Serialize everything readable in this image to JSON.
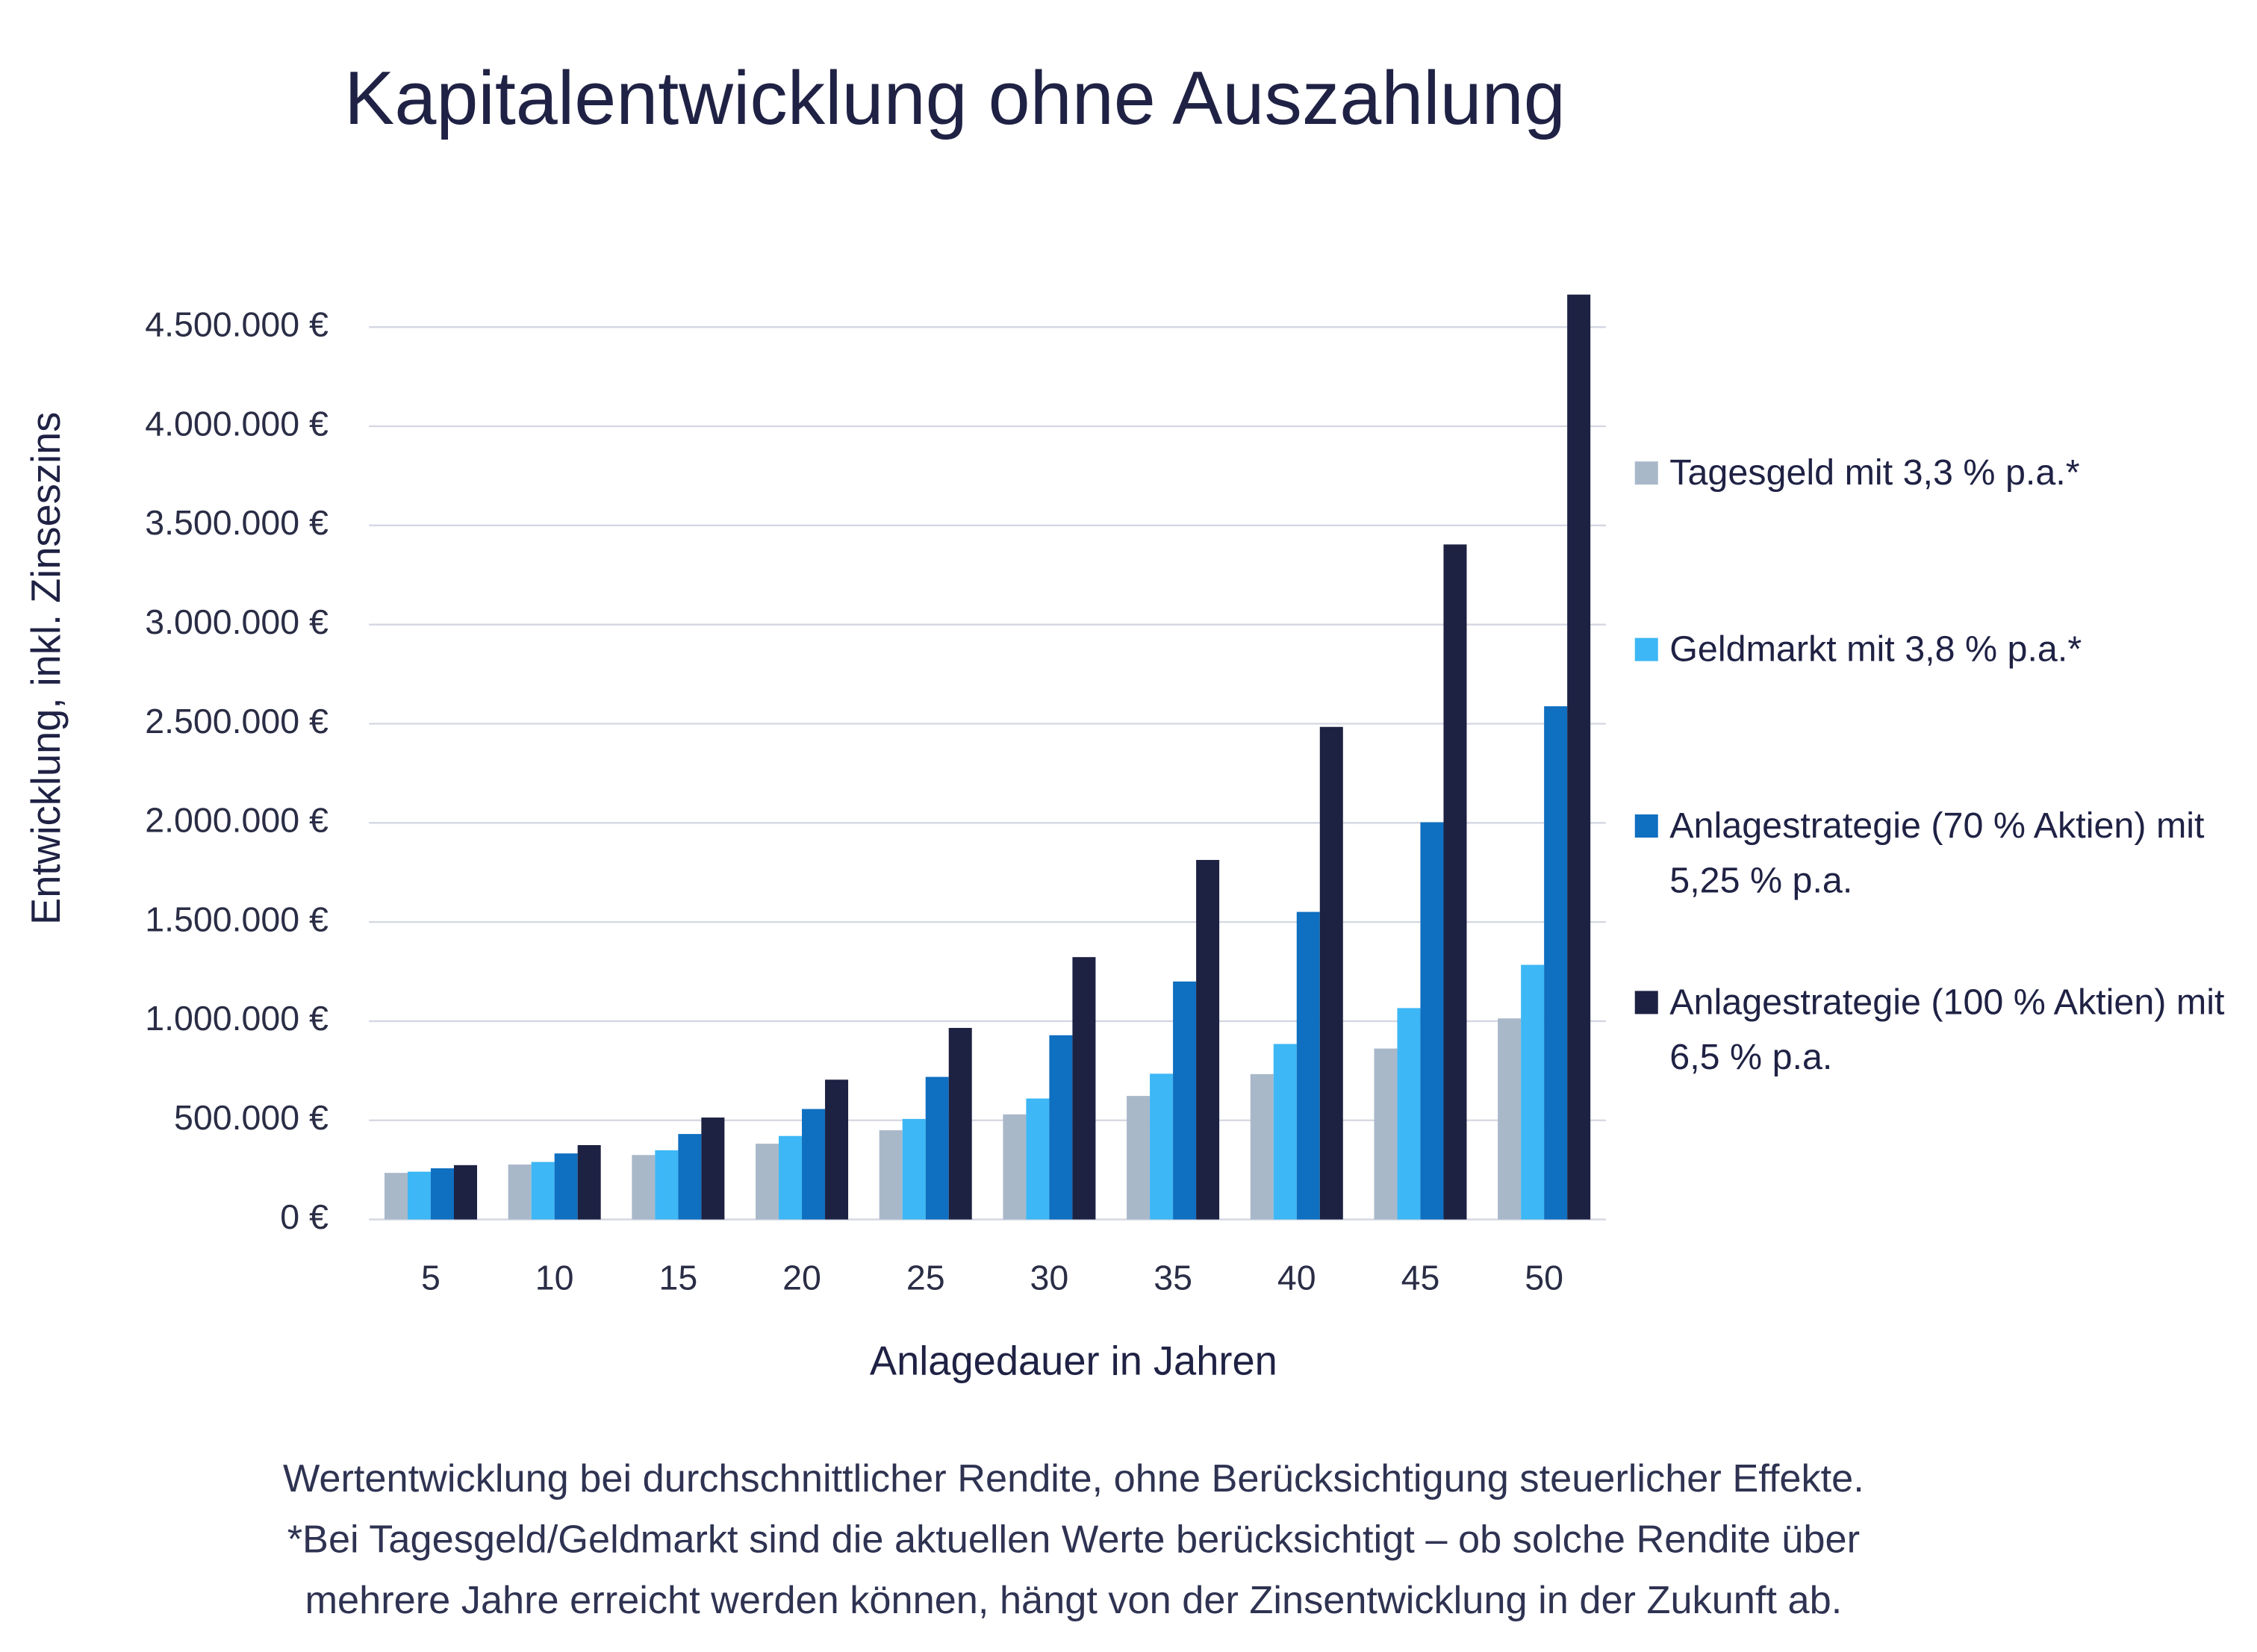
{
  "chart_data": {
    "type": "bar",
    "title": "Kapitalentwicklung ohne Auszahlung",
    "x_label": "Anlagedauer in Jahren",
    "y_label": "Entwicklung, inkl. Zinseszins",
    "categories": [
      "5",
      "10",
      "15",
      "20",
      "25",
      "30",
      "35",
      "40",
      "45",
      "50"
    ],
    "series": [
      {
        "name": "Tagesgeld mit 3,3 % p.a.*",
        "color": "#a9b8c9",
        "values": [
          235000,
          277000,
          325000,
          382000,
          450000,
          530000,
          623000,
          733000,
          862000,
          1014000
        ]
      },
      {
        "name": "Geldmarkt mit 3,8 % p.a.*",
        "color": "#3db7f5",
        "values": [
          241000,
          290000,
          349000,
          421000,
          507000,
          610000,
          735000,
          885000,
          1066000,
          1284000
        ]
      },
      {
        "name": "Anlagestrategie (70 % Aktien) mit 5,25 % p.a.",
        "color": "#0f6fc0",
        "values": [
          258000,
          333000,
          431000,
          557000,
          719000,
          929000,
          1200000,
          1551000,
          2003000,
          2588000
        ]
      },
      {
        "name": "Anlagestrategie (100 % Aktien) mit 6,5 % p.a.",
        "color": "#1d2142",
        "values": [
          274000,
          375000,
          514000,
          705000,
          966000,
          1323000,
          1813000,
          2484000,
          3404000,
          4664000
        ]
      }
    ],
    "ylim": [
      0,
      4800000
    ],
    "yticks": [
      {
        "value": 0,
        "label": "0 €"
      },
      {
        "value": 500000,
        "label": "500.000 €"
      },
      {
        "value": 1000000,
        "label": "1.000.000 €"
      },
      {
        "value": 1500000,
        "label": "1.500.000 €"
      },
      {
        "value": 2000000,
        "label": "2.000.000 €"
      },
      {
        "value": 2500000,
        "label": "2.500.000 €"
      },
      {
        "value": 3000000,
        "label": "3.000.000 €"
      },
      {
        "value": 3500000,
        "label": "3.500.000 €"
      },
      {
        "value": 4000000,
        "label": "4.000.000 €"
      },
      {
        "value": 4500000,
        "label": "4.500.000 €"
      }
    ],
    "grid": true,
    "legend": "right",
    "notes": [
      "Wertentwicklung bei durchschnittlicher Rendite, ohne Berücksichtigung steuerlicher Effekte.",
      "*Bei Tagesgeld/Geldmarkt sind die aktuellen Werte berücksichtigt – ob solche Rendite über",
      "mehrere Jahre erreicht werden können, hängt von der Zinsentwicklung in der Zukunft ab."
    ]
  }
}
